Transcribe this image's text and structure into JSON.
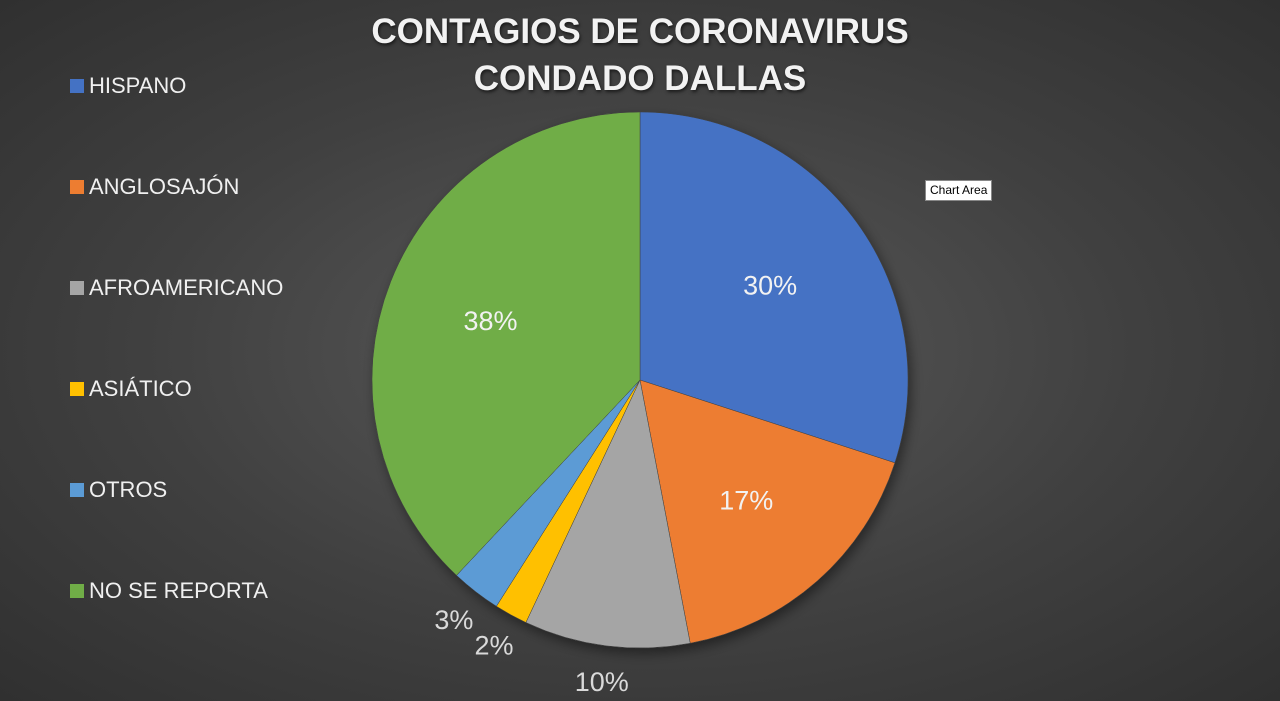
{
  "chart_data": {
    "type": "pie",
    "title_lines": [
      "CONTAGIOS DE CORONAVIRUS",
      "CONDADO DALLAS"
    ],
    "categories": [
      "HISPANO",
      "ANGLOSAJÓN",
      "AFROAMERICANO",
      "ASIÁTICO",
      "OTROS",
      "NO SE REPORTA"
    ],
    "values": [
      30,
      17,
      10,
      2,
      3,
      38
    ],
    "labels": [
      "30%",
      "17%",
      "10%",
      "2%",
      "3%",
      "38%"
    ],
    "colors": [
      "#4472c4",
      "#ed7d31",
      "#a5a5a5",
      "#ffc000",
      "#5b9bd5",
      "#70ad47"
    ],
    "legend_position": "left"
  },
  "tooltip": {
    "text": "Chart Area"
  }
}
